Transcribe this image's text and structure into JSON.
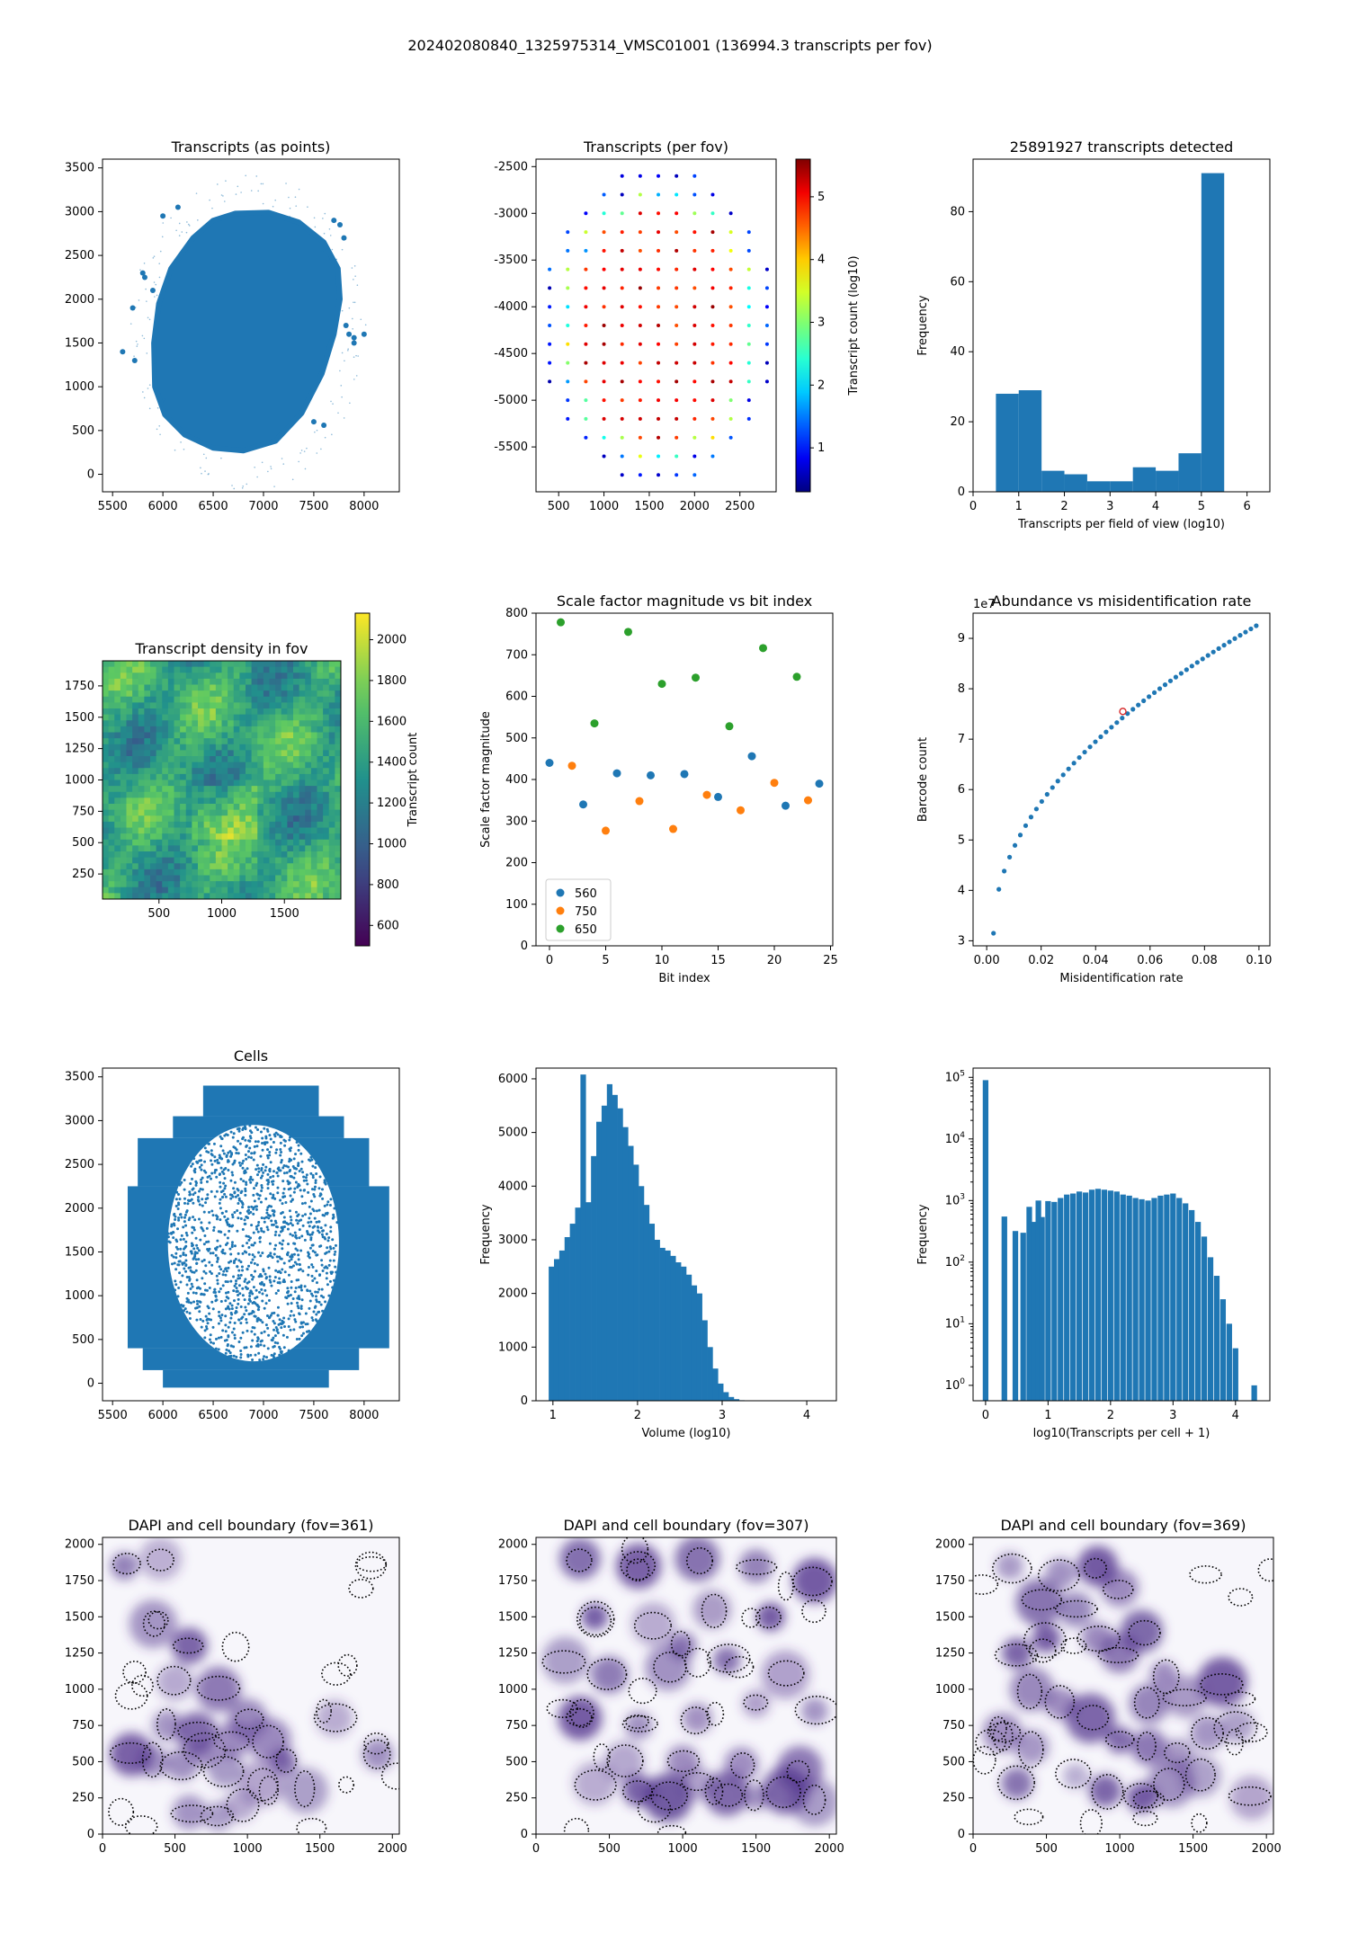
{
  "figure": {
    "suptitle": "202402080840_1325975314_VMSC01001 (136994.3 transcripts per fov)"
  },
  "chart_data": [
    {
      "id": "p1",
      "type": "scatter",
      "title": "Transcripts (as points)",
      "xlim": [
        5400,
        8350
      ],
      "ylim": [
        -200,
        3600
      ],
      "xticks": [
        5500,
        6000,
        6500,
        7000,
        7500,
        8000
      ],
      "yticks": [
        0,
        500,
        1000,
        1500,
        2000,
        2500,
        3000,
        3500
      ],
      "color": "#1f77b4",
      "shape_outline": [
        [
          6720,
          2980
        ],
        [
          7050,
          2990
        ],
        [
          7350,
          2880
        ],
        [
          7600,
          2650
        ],
        [
          7740,
          2350
        ],
        [
          7760,
          2000
        ],
        [
          7700,
          1600
        ],
        [
          7580,
          1150
        ],
        [
          7380,
          700
        ],
        [
          7120,
          380
        ],
        [
          6800,
          270
        ],
        [
          6500,
          300
        ],
        [
          6220,
          450
        ],
        [
          6020,
          680
        ],
        [
          5920,
          1000
        ],
        [
          5910,
          1500
        ],
        [
          5960,
          1950
        ],
        [
          6080,
          2350
        ],
        [
          6300,
          2700
        ],
        [
          6500,
          2900
        ]
      ],
      "outliers": [
        [
          5800,
          2300
        ],
        [
          5820,
          2250
        ],
        [
          5700,
          1900
        ],
        [
          5600,
          1400
        ],
        [
          5720,
          1300
        ],
        [
          7820,
          1700
        ],
        [
          7850,
          1600
        ],
        [
          7900,
          1560
        ],
        [
          7800,
          2700
        ],
        [
          7760,
          2850
        ],
        [
          7700,
          2900
        ],
        [
          6000,
          2950
        ],
        [
          6150,
          3050
        ],
        [
          7500,
          600
        ],
        [
          7600,
          560
        ],
        [
          5900,
          2100
        ],
        [
          8000,
          1600
        ],
        [
          7900,
          1500
        ]
      ]
    },
    {
      "id": "p2",
      "type": "scatter",
      "title": "Transcripts (per fov)",
      "xlim": [
        250,
        2900
      ],
      "ylim": [
        -5980,
        -2420
      ],
      "xticks": [
        500,
        1000,
        1500,
        2000,
        2500
      ],
      "yticks": [
        -2500,
        -3000,
        -3500,
        -4000,
        -4500,
        -5000,
        -5500
      ],
      "colorbar": {
        "label": "Transcript count (log10)",
        "min": 0.3,
        "max": 5.6,
        "ticks": [
          1,
          2,
          3,
          4,
          5
        ],
        "cmap": "jet"
      },
      "grid_x0": 400,
      "grid_dx": 200,
      "grid_y0": -2600,
      "grid_dy": 200,
      "grid_rows": 17,
      "grid_cols": 13
    },
    {
      "id": "p3",
      "type": "bar",
      "title": "25891927 transcripts detected",
      "xlabel": "Transcripts per field of view (log10)",
      "ylabel": "Frequency",
      "xlim": [
        0,
        6.5
      ],
      "ylim": [
        0,
        95
      ],
      "xticks": [
        0,
        1,
        2,
        3,
        4,
        5,
        6
      ],
      "yticks": [
        0,
        20,
        40,
        60,
        80
      ],
      "bin_edges": [
        0.5,
        1.0,
        1.5,
        2.0,
        2.5,
        3.0,
        3.5,
        4.0,
        4.5,
        5.0,
        5.5
      ],
      "values": [
        28,
        29,
        6,
        5,
        3,
        3,
        7,
        6,
        11,
        91
      ],
      "color": "#1f77b4"
    },
    {
      "id": "p4",
      "type": "heatmap",
      "title": "Transcript density in fov",
      "xlim": [
        50,
        1950
      ],
      "ylim": [
        50,
        1950
      ],
      "xticks": [
        500,
        1000,
        1500
      ],
      "yticks": [
        250,
        500,
        750,
        1000,
        1250,
        1500,
        1750
      ],
      "colorbar": {
        "label": "Transcript count",
        "min": 500,
        "max": 2130,
        "ticks": [
          600,
          800,
          1000,
          1200,
          1400,
          1600,
          1800,
          2000
        ],
        "cmap": "viridis"
      }
    },
    {
      "id": "p5",
      "type": "scatter",
      "title": "Scale factor magnitude vs bit index",
      "xlabel": "Bit index",
      "ylabel": "Scale factor magnitude",
      "xlim": [
        -1.2,
        25.2
      ],
      "ylim": [
        0,
        800
      ],
      "xticks": [
        0,
        5,
        10,
        15,
        20,
        25
      ],
      "yticks": [
        0,
        100,
        200,
        300,
        400,
        500,
        600,
        700,
        800
      ],
      "legend": "lower-left",
      "series": [
        {
          "name": "560",
          "color": "#1f77b4",
          "x": [
            0,
            3,
            6,
            9,
            12,
            15,
            18,
            21,
            24
          ],
          "y": [
            440,
            340,
            415,
            410,
            413,
            358,
            456,
            337,
            390
          ]
        },
        {
          "name": "750",
          "color": "#ff7f0e",
          "x": [
            2,
            5,
            8,
            11,
            14,
            17,
            20,
            23
          ],
          "y": [
            433,
            277,
            348,
            281,
            363,
            326,
            392,
            350
          ]
        },
        {
          "name": "650",
          "color": "#2ca02c",
          "x": [
            1,
            4,
            7,
            10,
            13,
            16,
            19,
            22
          ],
          "y": [
            778,
            535,
            755,
            630,
            645,
            528,
            716,
            647
          ]
        }
      ]
    },
    {
      "id": "p6",
      "type": "scatter",
      "title": "Abundance vs misidentification rate",
      "xlabel": "Misidentification rate",
      "ylabel": "Barcode count",
      "offset_label": "1e7",
      "xlim": [
        -0.005,
        0.104
      ],
      "ylim": [
        2.9,
        9.5
      ],
      "xticks": [
        0.0,
        0.02,
        0.04,
        0.06,
        0.08,
        0.1
      ],
      "xtick_labels": [
        "0.00",
        "0.02",
        "0.04",
        "0.06",
        "0.08",
        "0.10"
      ],
      "yticks": [
        3,
        4,
        5,
        6,
        7,
        8,
        9
      ],
      "color": "#1f77b4",
      "highlight": {
        "x": 0.05,
        "y": 7.55,
        "color": "#d62728"
      },
      "curve": {
        "x0": 0.0025,
        "x1": 0.099,
        "n": 50,
        "a": 9.25,
        "b": 3.15,
        "exponent": 0.5
      }
    },
    {
      "id": "p7",
      "type": "scatter",
      "title": "Cells",
      "xlim": [
        5400,
        8350
      ],
      "ylim": [
        -200,
        3600
      ],
      "xticks": [
        5500,
        6000,
        6500,
        7000,
        7500,
        8000
      ],
      "yticks": [
        0,
        500,
        1000,
        1500,
        2000,
        2500,
        3000,
        3500
      ],
      "color": "#1f77b4",
      "tiles": [
        [
          6400,
          3050,
          1150,
          350
        ],
        [
          6100,
          2800,
          1700,
          250
        ],
        [
          5750,
          2250,
          2300,
          550
        ],
        [
          5650,
          400,
          2600,
          1850
        ],
        [
          5800,
          150,
          2150,
          250
        ],
        [
          6000,
          -50,
          1650,
          200
        ]
      ],
      "inner_ellipse": {
        "cx": 6900,
        "cy": 1600,
        "rx": 850,
        "ry": 1350
      }
    },
    {
      "id": "p8",
      "type": "bar",
      "title": "",
      "xlabel": "Volume (log10)",
      "ylabel": "Frequency",
      "xlim": [
        0.8,
        4.35
      ],
      "ylim": [
        0,
        6200
      ],
      "xticks": [
        1,
        2,
        3,
        4
      ],
      "yticks": [
        0,
        1000,
        2000,
        3000,
        4000,
        5000,
        6000
      ],
      "bin_start": 0.95,
      "bin_width": 0.0625,
      "values": [
        2500,
        2640,
        2800,
        3050,
        3300,
        3600,
        6080,
        3700,
        4560,
        5200,
        5500,
        5900,
        5700,
        5450,
        5100,
        4750,
        4400,
        4000,
        3650,
        3300,
        3000,
        2850,
        2800,
        2700,
        2580,
        2500,
        2350,
        2150,
        2000,
        1500,
        1000,
        600,
        320,
        160,
        70,
        30,
        10,
        5
      ],
      "color": "#1f77b4"
    },
    {
      "id": "p9",
      "type": "bar",
      "title": "",
      "xlabel": "log10(Transcripts per cell + 1)",
      "ylabel": "Frequency",
      "yscale": "log",
      "xlim": [
        -0.2,
        4.55
      ],
      "ylim_log": [
        -0.25,
        5.15
      ],
      "xticks": [
        0,
        1,
        2,
        3,
        4
      ],
      "ytick_exponents": [
        0,
        1,
        2,
        3,
        4,
        5
      ],
      "color": "#1f77b4",
      "bars": [
        [
          0,
          90000
        ],
        [
          0.301,
          550
        ],
        [
          0.477,
          320
        ],
        [
          0.602,
          300
        ],
        [
          0.699,
          790
        ],
        [
          0.778,
          450
        ],
        [
          0.845,
          1000
        ],
        [
          0.903,
          540
        ],
        [
          1,
          980
        ],
        [
          1.1,
          950
        ],
        [
          1.2,
          1100
        ],
        [
          1.3,
          1250
        ],
        [
          1.4,
          1300
        ],
        [
          1.5,
          1400
        ],
        [
          1.6,
          1350
        ],
        [
          1.7,
          1500
        ],
        [
          1.8,
          1550
        ],
        [
          1.9,
          1500
        ],
        [
          2.0,
          1450
        ],
        [
          2.1,
          1400
        ],
        [
          2.2,
          1250
        ],
        [
          2.3,
          1200
        ],
        [
          2.4,
          1100
        ],
        [
          2.5,
          1050
        ],
        [
          2.6,
          1000
        ],
        [
          2.7,
          1100
        ],
        [
          2.8,
          1200
        ],
        [
          2.9,
          1250
        ],
        [
          3.0,
          1300
        ],
        [
          3.1,
          1100
        ],
        [
          3.2,
          900
        ],
        [
          3.3,
          700
        ],
        [
          3.4,
          450
        ],
        [
          3.5,
          260
        ],
        [
          3.6,
          120
        ],
        [
          3.7,
          60
        ],
        [
          3.8,
          25
        ],
        [
          3.9,
          10
        ],
        [
          4.0,
          4
        ],
        [
          4.3,
          1
        ]
      ]
    },
    {
      "id": "p10",
      "type": "heatmap",
      "title": "DAPI and cell boundary (fov=361)",
      "xlim": [
        0,
        2048
      ],
      "ylim": [
        0,
        2048
      ],
      "xticks": [
        0,
        500,
        1000,
        1500,
        2000
      ],
      "yticks": [
        0,
        250,
        500,
        750,
        1000,
        1250,
        1500,
        1750,
        2000
      ],
      "cmap": "Purples",
      "nuclei": [
        [
          350,
          500
        ],
        [
          550,
          480
        ],
        [
          700,
          560
        ],
        [
          850,
          450
        ],
        [
          600,
          150
        ],
        [
          800,
          120
        ],
        [
          950,
          200
        ],
        [
          1100,
          350
        ],
        [
          1250,
          500
        ],
        [
          450,
          750
        ],
        [
          650,
          700
        ],
        [
          900,
          650
        ],
        [
          1150,
          650
        ],
        [
          350,
          1450
        ],
        [
          600,
          1300
        ],
        [
          150,
          1850
        ],
        [
          400,
          1900
        ],
        [
          200,
          550
        ],
        [
          1900,
          550
        ],
        [
          1400,
          300
        ],
        [
          1600,
          800
        ],
        [
          1000,
          800
        ],
        [
          500,
          1050
        ],
        [
          800,
          1000
        ]
      ]
    },
    {
      "id": "p11",
      "type": "heatmap",
      "title": "DAPI and cell boundary (fov=307)",
      "xlim": [
        0,
        2048
      ],
      "ylim": [
        0,
        2048
      ],
      "xticks": [
        0,
        500,
        1000,
        1500,
        2000
      ],
      "yticks": [
        0,
        250,
        500,
        750,
        1000,
        1250,
        1500,
        1750,
        2000
      ],
      "cmap": "Purples",
      "nuclei": [
        [
          700,
          300
        ],
        [
          900,
          250
        ],
        [
          1100,
          350
        ],
        [
          1300,
          280
        ],
        [
          1500,
          250
        ],
        [
          1700,
          300
        ],
        [
          1900,
          220
        ],
        [
          400,
          350
        ],
        [
          600,
          500
        ],
        [
          1000,
          500
        ],
        [
          1400,
          480
        ],
        [
          1800,
          450
        ],
        [
          300,
          800
        ],
        [
          700,
          750
        ],
        [
          1100,
          800
        ],
        [
          1500,
          900
        ],
        [
          1900,
          850
        ],
        [
          500,
          1100
        ],
        [
          900,
          1150
        ],
        [
          1300,
          1200
        ],
        [
          1700,
          1100
        ],
        [
          400,
          1500
        ],
        [
          800,
          1450
        ],
        [
          1200,
          1550
        ],
        [
          1600,
          1500
        ],
        [
          300,
          1900
        ],
        [
          700,
          1850
        ],
        [
          1100,
          1900
        ],
        [
          1500,
          1850
        ],
        [
          1900,
          1750
        ],
        [
          200,
          1200
        ],
        [
          1000,
          1300
        ]
      ]
    },
    {
      "id": "p12",
      "type": "heatmap",
      "title": "DAPI and cell boundary (fov=369)",
      "xlim": [
        0,
        2048
      ],
      "ylim": [
        0,
        2048
      ],
      "xticks": [
        0,
        500,
        1000,
        1500,
        2000
      ],
      "yticks": [
        0,
        250,
        500,
        750,
        1000,
        1250,
        1500,
        1750,
        2000
      ],
      "cmap": "Purples",
      "nuclei": [
        [
          850,
          1350
        ],
        [
          1000,
          1250
        ],
        [
          1150,
          1400
        ],
        [
          1300,
          1100
        ],
        [
          1450,
          950
        ],
        [
          1200,
          900
        ],
        [
          1000,
          1700
        ],
        [
          850,
          1850
        ],
        [
          600,
          1800
        ],
        [
          700,
          1550
        ],
        [
          500,
          1350
        ],
        [
          300,
          1250
        ],
        [
          400,
          1000
        ],
        [
          600,
          900
        ],
        [
          800,
          800
        ],
        [
          1000,
          650
        ],
        [
          1200,
          600
        ],
        [
          1400,
          550
        ],
        [
          1600,
          700
        ],
        [
          1800,
          750
        ],
        [
          400,
          600
        ],
        [
          200,
          700
        ],
        [
          700,
          400
        ],
        [
          900,
          300
        ],
        [
          1150,
          250
        ],
        [
          1350,
          350
        ],
        [
          1550,
          400
        ],
        [
          300,
          350
        ],
        [
          1900,
          250
        ],
        [
          1700,
          1050
        ],
        [
          450,
          1600
        ],
        [
          250,
          1850
        ]
      ]
    }
  ]
}
